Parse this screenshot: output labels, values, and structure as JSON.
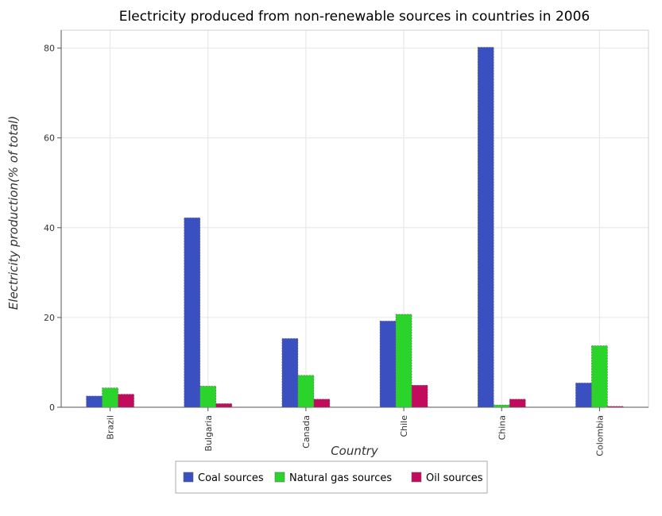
{
  "chart_data": {
    "type": "bar",
    "title": "Electricity produced from non-renewable sources in countries in 2006",
    "xlabel": "Country",
    "ylabel": "Electricity production(% of total)",
    "categories": [
      "Brazil",
      "Bulgaria",
      "Canada",
      "Chile",
      "China",
      "Colombia"
    ],
    "series": [
      {
        "name": "Coal sources",
        "color": "#3a4fc0",
        "values": [
          2.5,
          42.2,
          15.3,
          19.2,
          80.2,
          5.4
        ]
      },
      {
        "name": "Natural gas sources",
        "color": "#2bd42b",
        "values": [
          4.3,
          4.7,
          7.1,
          20.7,
          0.5,
          13.7
        ]
      },
      {
        "name": "Oil sources",
        "color": "#c20b5d",
        "values": [
          2.9,
          0.8,
          1.8,
          4.9,
          1.8,
          0.2
        ]
      }
    ],
    "yticks": [
      0,
      20,
      40,
      60,
      80
    ],
    "ylim": [
      0,
      84
    ],
    "grid": true,
    "legend": "bottom-center"
  }
}
